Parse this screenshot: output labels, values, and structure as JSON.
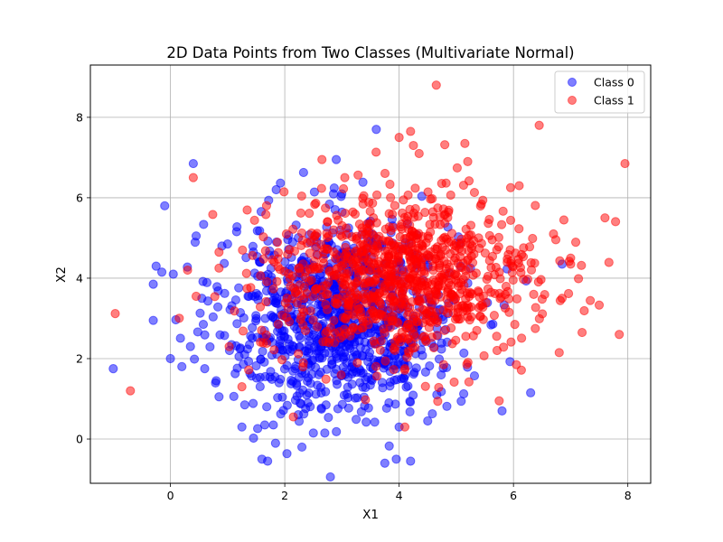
{
  "chart_data": {
    "type": "scatter",
    "title": "2D Data Points from Two Classes (Multivariate Normal)",
    "xlabel": "X1",
    "ylabel": "X2",
    "xlim": [
      -1.4,
      8.4
    ],
    "ylim": [
      -1.1,
      9.3
    ],
    "xticks": [
      0,
      2,
      4,
      6,
      8
    ],
    "yticks": [
      0,
      2,
      4,
      6,
      8
    ],
    "grid": true,
    "legend_position": "top-right",
    "series": [
      {
        "name": "Class 0",
        "color": "#0000ff",
        "opacity": 0.5,
        "mean": [
          3.0,
          3.0
        ],
        "std": [
          1.0,
          1.2
        ],
        "count": 1000,
        "values": [
          [
            -1.0,
            1.75
          ],
          [
            -0.25,
            4.3
          ],
          [
            -0.3,
            3.85
          ],
          [
            -0.3,
            2.95
          ],
          [
            -0.1,
            5.8
          ],
          [
            0.0,
            2.0
          ],
          [
            0.05,
            4.1
          ],
          [
            -0.15,
            4.15
          ],
          [
            0.4,
            6.85
          ],
          [
            0.35,
            2.3
          ],
          [
            0.45,
            5.05
          ],
          [
            0.2,
            1.8
          ],
          [
            0.6,
            1.75
          ],
          [
            0.55,
            3.5
          ],
          [
            0.8,
            1.45
          ],
          [
            0.85,
            1.05
          ],
          [
            0.9,
            4.8
          ],
          [
            1.0,
            4.85
          ],
          [
            1.25,
            0.3
          ],
          [
            1.3,
            0.85
          ],
          [
            1.6,
            -0.5
          ],
          [
            1.7,
            -0.55
          ],
          [
            1.65,
            0.35
          ],
          [
            1.8,
            0.35
          ],
          [
            2.3,
            -0.2
          ],
          [
            1.85,
            6.2
          ],
          [
            3.6,
            7.7
          ],
          [
            2.9,
            6.95
          ],
          [
            3.75,
            -0.6
          ],
          [
            3.95,
            -0.5
          ],
          [
            4.2,
            -0.55
          ],
          [
            4.0,
            0.3
          ],
          [
            4.5,
            0.45
          ],
          [
            6.3,
            1.15
          ],
          [
            5.8,
            0.7
          ],
          [
            6.85,
            4.35
          ],
          [
            1.45,
            4.65
          ],
          [
            1.2,
            2.05
          ],
          [
            2.5,
            0.15
          ],
          [
            2.7,
            0.15
          ]
        ]
      },
      {
        "name": "Class 1",
        "color": "#ff0000",
        "opacity": 0.5,
        "mean": [
          4.0,
          4.0
        ],
        "std": [
          1.2,
          1.0
        ],
        "count": 1000,
        "values": [
          [
            4.65,
            8.8
          ],
          [
            6.45,
            7.8
          ],
          [
            7.95,
            6.85
          ],
          [
            7.6,
            5.5
          ],
          [
            7.85,
            2.6
          ],
          [
            7.2,
            2.65
          ],
          [
            6.8,
            2.15
          ],
          [
            0.4,
            6.5
          ],
          [
            0.3,
            4.2
          ],
          [
            4.0,
            7.5
          ],
          [
            4.2,
            7.65
          ],
          [
            5.15,
            7.35
          ],
          [
            4.25,
            7.3
          ],
          [
            0.45,
            3.55
          ],
          [
            0.85,
            4.25
          ],
          [
            1.25,
            1.3
          ],
          [
            2.15,
            0.55
          ],
          [
            4.1,
            0.3
          ],
          [
            5.75,
            0.95
          ],
          [
            6.05,
            1.85
          ],
          [
            6.85,
            3.5
          ],
          [
            7.0,
            4.5
          ],
          [
            7.0,
            4.35
          ],
          [
            6.7,
            5.1
          ],
          [
            6.1,
            6.3
          ],
          [
            5.95,
            6.25
          ],
          [
            2.65,
            6.95
          ],
          [
            3.05,
            6.5
          ],
          [
            4.35,
            7.1
          ],
          [
            5.2,
            6.9
          ]
        ]
      }
    ]
  }
}
